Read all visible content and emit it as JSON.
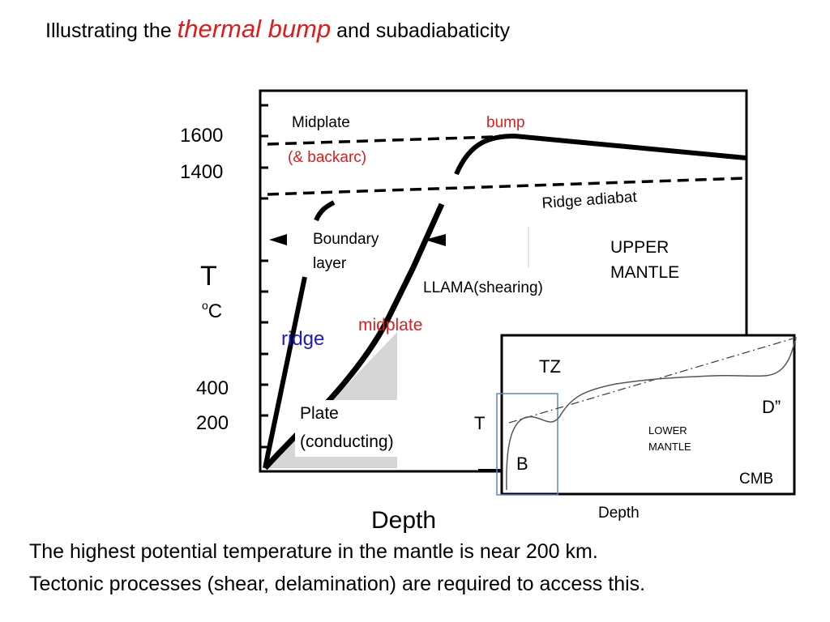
{
  "title": {
    "prefix": "Illustrating the",
    "highlight": "thermal bump",
    "suffix": "and  subadiabaticity"
  },
  "main_plot": {
    "y_ticks": [
      "1600",
      "1400",
      "400",
      "200"
    ],
    "y_label": "T",
    "y_unit": "oC",
    "x_label": "Depth",
    "labels": {
      "midplate_top": "Midplate",
      "backarc": "(& backarc)",
      "bump": "bump",
      "ridge_adiabat": "Ridge adiabat",
      "boundary_layer_1": "Boundary",
      "boundary_layer_2": "layer",
      "upper_mantle_1": "UPPER",
      "upper_mantle_2": "MANTLE",
      "llama": "LLAMA(shearing)",
      "midplate_curve": "midplate",
      "ridge": "ridge",
      "plate_1": "Plate",
      "plate_2": "(conducting)"
    }
  },
  "inset": {
    "tz": "TZ",
    "d_double_prime": "D”",
    "t_label": "T",
    "lower_mantle_1": "LOWER",
    "lower_mantle_2": "MANTLE",
    "b_label": "B",
    "cmb": "CMB",
    "x_label": "Depth"
  },
  "caption": {
    "line1": "The highest potential temperature in the mantle is near 200 km.",
    "line2": "Tectonic processes (shear, delamination) are required to access this."
  },
  "colors": {
    "accent_red": "#e01b1b",
    "ridge_blue": "#1a1acc",
    "fill_gray": "#d6d6d6",
    "inset_blue": "#5b86c8"
  }
}
